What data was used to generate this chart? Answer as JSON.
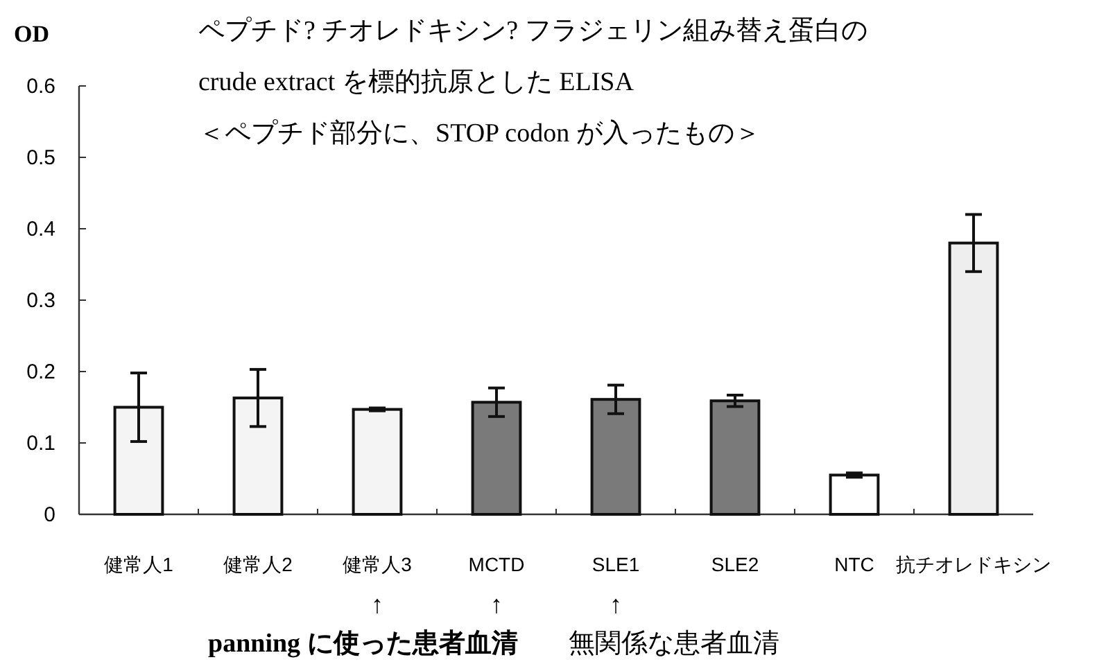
{
  "chart_data": {
    "type": "bar",
    "title": "ペプチド? チオレドキシン? フラジェリン組み替え蛋白の\ncrude extract を標的抗原とした ELISA",
    "subtitle": "＜ペプチド部分に、STOP codon が入ったもの＞",
    "ylabel": "OD",
    "categories": [
      "健常人1",
      "健常人2",
      "健常人3",
      "MCTD",
      "SLE1",
      "SLE2",
      "NTC",
      "抗チオレドキシン"
    ],
    "values": [
      0.15,
      0.163,
      0.147,
      0.157,
      0.161,
      0.159,
      0.055,
      0.38
    ],
    "errors": [
      0.048,
      0.04,
      0.002,
      0.02,
      0.02,
      0.008,
      0.003,
      0.04
    ],
    "colors": [
      "#f4f4f4",
      "#f4f4f4",
      "#f4f4f4",
      "#7a7a7a",
      "#7a7a7a",
      "#7a7a7a",
      "#ffffff",
      "#eeeeee"
    ],
    "ylim": [
      0,
      0.6
    ],
    "yticks": [
      0,
      0.1,
      0.2,
      0.3,
      0.4,
      0.5,
      0.6
    ],
    "grid": false,
    "annotations": [
      "↑",
      "↑",
      "↑",
      "panning に使った患者血清",
      "無関係な患者血清"
    ]
  }
}
